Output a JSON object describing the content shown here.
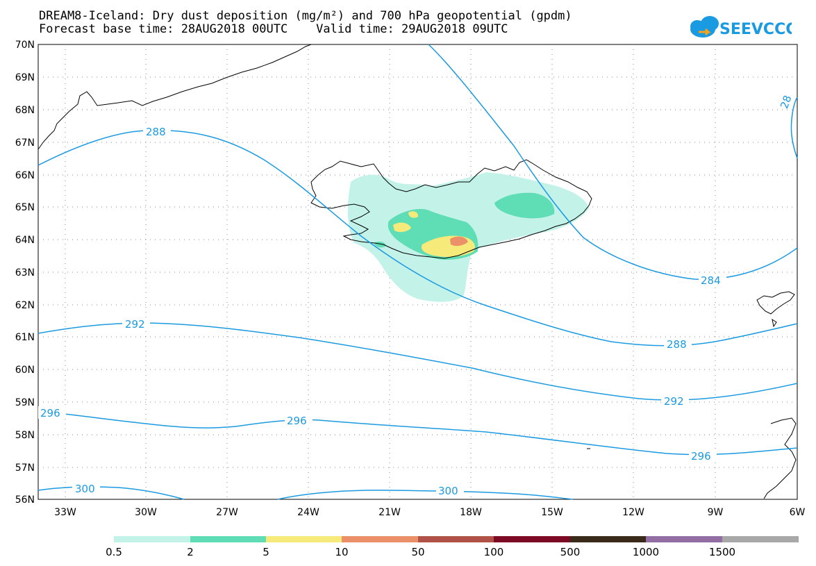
{
  "header": {
    "title_line1": "DREAM8-Iceland: Dry dust deposition (mg/m²) and 700 hPa geopotential (gpdm)",
    "title_line2": "Forecast base time: 28AUG2018 00UTC    Valid time: 29AUG2018 09UTC",
    "logo_text": "SEEVCCC"
  },
  "map": {
    "lon_labels": [
      "33W",
      "30W",
      "27W",
      "24W",
      "21W",
      "18W",
      "15W",
      "12W",
      "9W",
      "6W"
    ],
    "lat_labels": [
      "70N",
      "69N",
      "68N",
      "67N",
      "66N",
      "65N",
      "64N",
      "63N",
      "62N",
      "61N",
      "60N",
      "59N",
      "58N",
      "57N",
      "56N"
    ],
    "contour_labels": [
      "288",
      "284",
      "288",
      "292",
      "292",
      "296",
      "296",
      "296",
      "300",
      "300",
      "28"
    ],
    "colors": {
      "contour": "#1a9ae0",
      "coast": "#000000",
      "grid": "#888888"
    }
  },
  "legend": {
    "labels": [
      "0.5",
      "2",
      "5",
      "10",
      "50",
      "100",
      "500",
      "1000",
      "1500"
    ],
    "colors": [
      "#c3f2e9",
      "#5fddb5",
      "#f5ea7a",
      "#eb9068",
      "#b05248",
      "#7d0a24",
      "#3a2a1a",
      "#936ea4",
      "#a8a8a8"
    ]
  }
}
